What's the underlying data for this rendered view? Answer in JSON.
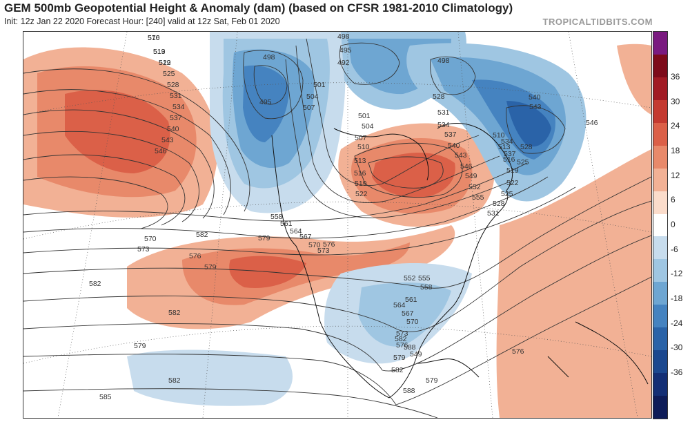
{
  "header": {
    "title": "GEM 500mb Geopotential Height & Anomaly (dam) (based on CFSR 1981-2010 Climatology)",
    "init_line": "Init: 12z Jan 22 2020   Forecast Hour: [240]   valid at 12z Sat, Feb 01 2020",
    "source": "TROPICALTIDBITS.COM"
  },
  "colorbar": {
    "labels": [
      "36",
      "30",
      "24",
      "18",
      "12",
      "6",
      "0",
      "-6",
      "-12",
      "-18",
      "-24",
      "-30",
      "-36"
    ],
    "colors": [
      "#7a1a80",
      "#7d0b1a",
      "#a11b24",
      "#c43a30",
      "#db6048",
      "#e8896a",
      "#f2b195",
      "#fbdccb",
      "#ffffff",
      "#c7dced",
      "#9fc6e2",
      "#6ea6d2",
      "#4583c0",
      "#2a63a8",
      "#1c488f",
      "#142f75",
      "#0e1c58"
    ]
  },
  "map": {
    "contour_labels": [
      "516",
      "519",
      "522",
      "525",
      "528",
      "531",
      "534",
      "537",
      "540",
      "543",
      "546",
      "498",
      "495",
      "501",
      "504",
      "507",
      "492",
      "495",
      "498",
      "498",
      "501",
      "504",
      "507",
      "510",
      "513",
      "516",
      "519",
      "522",
      "528",
      "531",
      "534",
      "537",
      "540",
      "543",
      "546",
      "549",
      "552",
      "555",
      "558",
      "561",
      "564",
      "567",
      "570",
      "573",
      "576",
      "579",
      "582",
      "570",
      "573",
      "576",
      "579",
      "582",
      "582",
      "579",
      "582",
      "585",
      "588",
      "579",
      "576",
      "582",
      "588",
      "549",
      "552",
      "555",
      "558",
      "561",
      "564",
      "567",
      "570",
      "573",
      "576",
      "579",
      "582",
      "510",
      "513",
      "516",
      "519",
      "522",
      "525",
      "528",
      "531",
      "534",
      "537",
      "540",
      "543",
      "546",
      "528",
      "525",
      "570",
      "513",
      "519"
    ]
  }
}
